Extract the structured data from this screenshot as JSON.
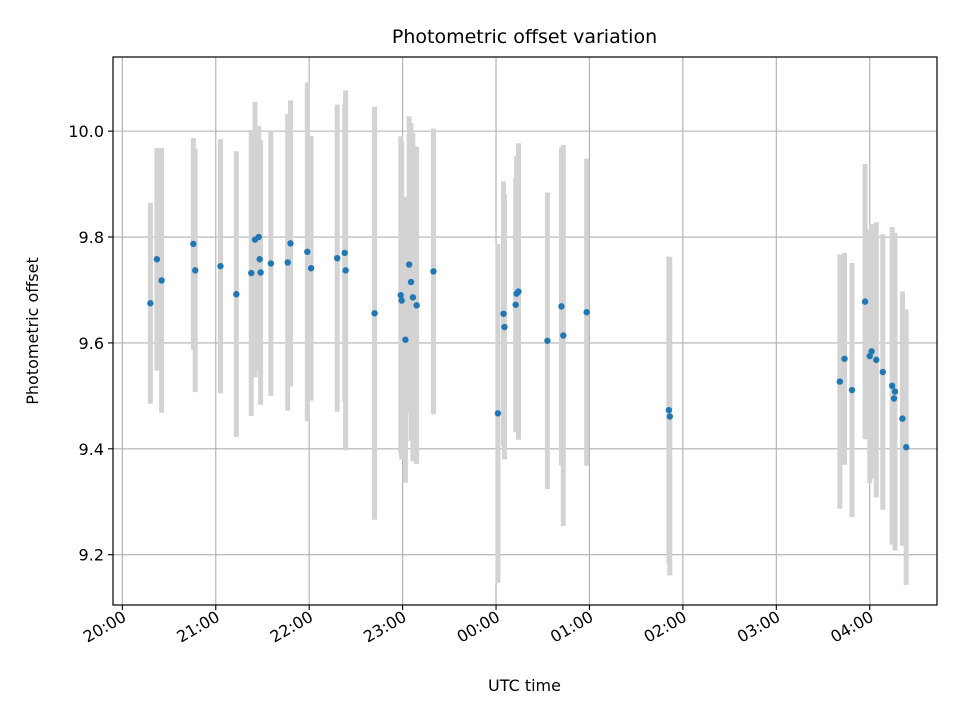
{
  "chart_data": {
    "type": "scatter",
    "title": "Photometric offset variation",
    "xlabel": "UTC time",
    "ylabel": "Photometric offset",
    "x_ticks": [
      "20:00",
      "21:00",
      "22:00",
      "23:00",
      "00:00",
      "01:00",
      "02:00",
      "03:00",
      "04:00"
    ],
    "y_ticks": [
      "9.2",
      "9.4",
      "9.6",
      "9.8",
      "10.0"
    ],
    "xlim": [
      -0.1,
      8.72
    ],
    "ylim": [
      9.105,
      10.14
    ],
    "grid": true,
    "colors": {
      "points": "#1f77b4",
      "error_bars": "#d3d3d3",
      "grid": "#b0b0b0"
    },
    "series": [
      {
        "x": [
          0.3,
          0.37,
          0.42,
          0.76,
          0.78,
          1.05,
          1.22,
          1.38,
          1.42,
          1.46,
          1.47,
          1.48,
          1.59,
          1.77,
          1.8,
          1.98,
          2.02,
          2.3,
          2.38,
          2.39,
          2.7,
          2.98,
          2.99,
          3.03,
          3.07,
          3.09,
          3.11,
          3.15,
          3.33,
          4.02,
          4.08,
          4.09,
          4.21,
          4.22,
          4.24,
          4.55,
          4.7,
          4.72,
          4.97,
          5.85,
          5.86,
          7.68,
          7.73,
          7.81,
          7.95,
          8.0,
          8.02,
          8.07,
          8.14,
          8.24,
          8.26,
          8.27,
          8.35,
          8.39
        ],
        "y": [
          9.675,
          9.758,
          9.718,
          9.787,
          9.737,
          9.745,
          9.692,
          9.732,
          9.795,
          9.8,
          9.758,
          9.733,
          9.75,
          9.752,
          9.788,
          9.772,
          9.741,
          9.76,
          9.77,
          9.737,
          9.656,
          9.69,
          9.68,
          9.606,
          9.748,
          9.715,
          9.686,
          9.671,
          9.735,
          9.467,
          9.655,
          9.63,
          9.672,
          9.693,
          9.697,
          9.604,
          9.669,
          9.614,
          9.658,
          9.473,
          9.461,
          9.527,
          9.57,
          9.511,
          9.678,
          9.575,
          9.584,
          9.568,
          9.545,
          9.519,
          9.495,
          9.508,
          9.457,
          9.403
        ],
        "yerr": [
          0.19,
          0.21,
          0.25,
          0.2,
          0.23,
          0.24,
          0.27,
          0.27,
          0.26,
          0.21,
          0.21,
          0.25,
          0.25,
          0.28,
          0.27,
          0.32,
          0.25,
          0.29,
          0.28,
          0.34,
          0.39,
          0.3,
          0.3,
          0.27,
          0.28,
          0.3,
          0.31,
          0.3,
          0.27,
          0.32,
          0.25,
          0.25,
          0.24,
          0.26,
          0.28,
          0.28,
          0.3,
          0.36,
          0.29,
          0.29,
          0.3,
          0.24,
          0.2,
          0.24,
          0.26,
          0.24,
          0.24,
          0.26,
          0.26,
          0.3,
          0.27,
          0.3,
          0.24,
          0.26
        ]
      }
    ]
  }
}
